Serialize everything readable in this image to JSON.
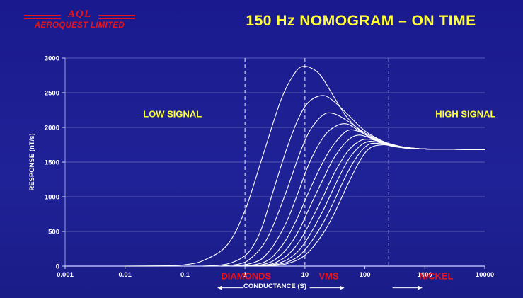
{
  "logo": {
    "brand": "AQL",
    "company": "AEROQUEST LIMITED"
  },
  "colors": {
    "background": "#1c1d8c",
    "title": "#ffff33",
    "region_label": "#ffff33",
    "deposit_label": "#e8141c",
    "curve": "#ffffff",
    "grid": "#6a6fc0"
  },
  "chart_data": {
    "type": "line",
    "title": "150 Hz NOMOGRAM – ON TIME",
    "xlabel": "CONDUCTANCE (S)",
    "ylabel": "RESPONSE (nT/s)",
    "xscale": "log",
    "xlim": [
      0.001,
      10000
    ],
    "ylim": [
      0,
      3000
    ],
    "xticks": [
      0.001,
      0.01,
      0.1,
      1,
      10,
      100,
      1000,
      10000
    ],
    "xtick_labels": [
      "0.001",
      "0.01",
      "0.1",
      "1",
      "10",
      "100",
      "1000",
      "10000"
    ],
    "yticks": [
      0,
      500,
      1000,
      1500,
      2000,
      2500,
      3000
    ],
    "ytick_labels": [
      "0",
      "500",
      "1000",
      "1500",
      "2000",
      "2500",
      "3000"
    ],
    "grid": "horizontal",
    "dashed_vlines_x": [
      1,
      10,
      250
    ],
    "region_labels": [
      {
        "text": "LOW SIGNAL",
        "x": 0.02,
        "y": 2150
      },
      {
        "text": "HIGH SIGNAL",
        "x": 1500,
        "y": 2150
      }
    ],
    "deposit_labels": [
      {
        "text": "DIAMONDS",
        "x": 0.4,
        "y": 300,
        "arrow_from": 0.95,
        "arrow_to": 0.35
      },
      {
        "text": "VMS",
        "x": 17,
        "y": 300,
        "arrow_from": 12,
        "arrow_to": 45
      },
      {
        "text": "NICKEL",
        "x": 800,
        "y": 300,
        "arrow_from": 290,
        "arrow_to": 900
      }
    ],
    "curves": [
      {
        "x": [
          0.01,
          0.05,
          0.1,
          0.2,
          0.5,
          1,
          2,
          4,
          7,
          10,
          15,
          20,
          30,
          50,
          100,
          200,
          300,
          500,
          1000,
          3000,
          10000
        ],
        "y": [
          0,
          5,
          20,
          80,
          300,
          800,
          1600,
          2400,
          2800,
          2880,
          2820,
          2700,
          2450,
          2150,
          1900,
          1780,
          1740,
          1710,
          1690,
          1685,
          1680
        ]
      },
      {
        "x": [
          0.2,
          0.5,
          1,
          1.5,
          2,
          3,
          5,
          8,
          12,
          20,
          30,
          50,
          100,
          200,
          300,
          500,
          1000,
          3000,
          10000
        ],
        "y": [
          0,
          30,
          150,
          350,
          600,
          1100,
          1700,
          2150,
          2380,
          2460,
          2380,
          2200,
          1950,
          1800,
          1750,
          1710,
          1690,
          1685,
          1680
        ]
      },
      {
        "x": [
          0.4,
          0.8,
          1.2,
          2,
          3,
          5,
          8,
          12,
          20,
          30,
          50,
          100,
          200,
          300,
          500,
          1000,
          3000,
          10000
        ],
        "y": [
          0,
          30,
          100,
          300,
          600,
          1100,
          1600,
          1950,
          2180,
          2200,
          2100,
          1920,
          1800,
          1750,
          1710,
          1690,
          1685,
          1680
        ]
      },
      {
        "x": [
          0.6,
          1,
          1.5,
          2,
          3,
          5,
          8,
          12,
          20,
          30,
          50,
          100,
          200,
          300,
          500,
          1000,
          3000,
          10000
        ],
        "y": [
          0,
          20,
          60,
          120,
          300,
          650,
          1100,
          1500,
          1850,
          2000,
          2050,
          1900,
          1790,
          1745,
          1710,
          1690,
          1685,
          1680
        ]
      },
      {
        "x": [
          0.8,
          1.2,
          2,
          3,
          5,
          8,
          12,
          20,
          30,
          50,
          80,
          150,
          250,
          400,
          1000,
          3000,
          10000
        ],
        "y": [
          0,
          10,
          50,
          150,
          400,
          750,
          1100,
          1500,
          1750,
          1950,
          1940,
          1820,
          1760,
          1720,
          1690,
          1685,
          1680
        ]
      },
      {
        "x": [
          1,
          1.5,
          2,
          3,
          5,
          8,
          12,
          20,
          30,
          50,
          80,
          150,
          250,
          400,
          1000,
          3000,
          10000
        ],
        "y": [
          0,
          10,
          25,
          80,
          250,
          520,
          850,
          1250,
          1550,
          1800,
          1890,
          1820,
          1760,
          1720,
          1690,
          1685,
          1680
        ]
      },
      {
        "x": [
          1.2,
          2,
          3,
          5,
          8,
          12,
          20,
          30,
          50,
          80,
          120,
          200,
          300,
          500,
          1000,
          3000,
          10000
        ],
        "y": [
          0,
          15,
          40,
          150,
          350,
          620,
          1000,
          1320,
          1640,
          1800,
          1830,
          1780,
          1740,
          1710,
          1690,
          1685,
          1680
        ]
      },
      {
        "x": [
          1.4,
          2,
          3,
          5,
          8,
          12,
          20,
          30,
          50,
          80,
          120,
          200,
          300,
          500,
          1000,
          3000,
          10000
        ],
        "y": [
          0,
          8,
          25,
          90,
          230,
          450,
          800,
          1120,
          1500,
          1720,
          1800,
          1770,
          1735,
          1705,
          1690,
          1685,
          1680
        ]
      },
      {
        "x": [
          1.6,
          2,
          3,
          5,
          8,
          12,
          20,
          30,
          50,
          80,
          120,
          200,
          300,
          500,
          1000,
          3000,
          10000
        ],
        "y": [
          0,
          4,
          15,
          55,
          150,
          320,
          620,
          920,
          1330,
          1620,
          1760,
          1760,
          1730,
          1700,
          1690,
          1685,
          1680
        ]
      },
      {
        "x": [
          1.8,
          2.5,
          3.5,
          5,
          8,
          12,
          20,
          30,
          50,
          80,
          120,
          200,
          300,
          500,
          1000,
          3000,
          10000
        ],
        "y": [
          0,
          4,
          12,
          35,
          100,
          220,
          470,
          740,
          1150,
          1500,
          1700,
          1750,
          1725,
          1700,
          1690,
          1685,
          1680
        ]
      }
    ]
  }
}
